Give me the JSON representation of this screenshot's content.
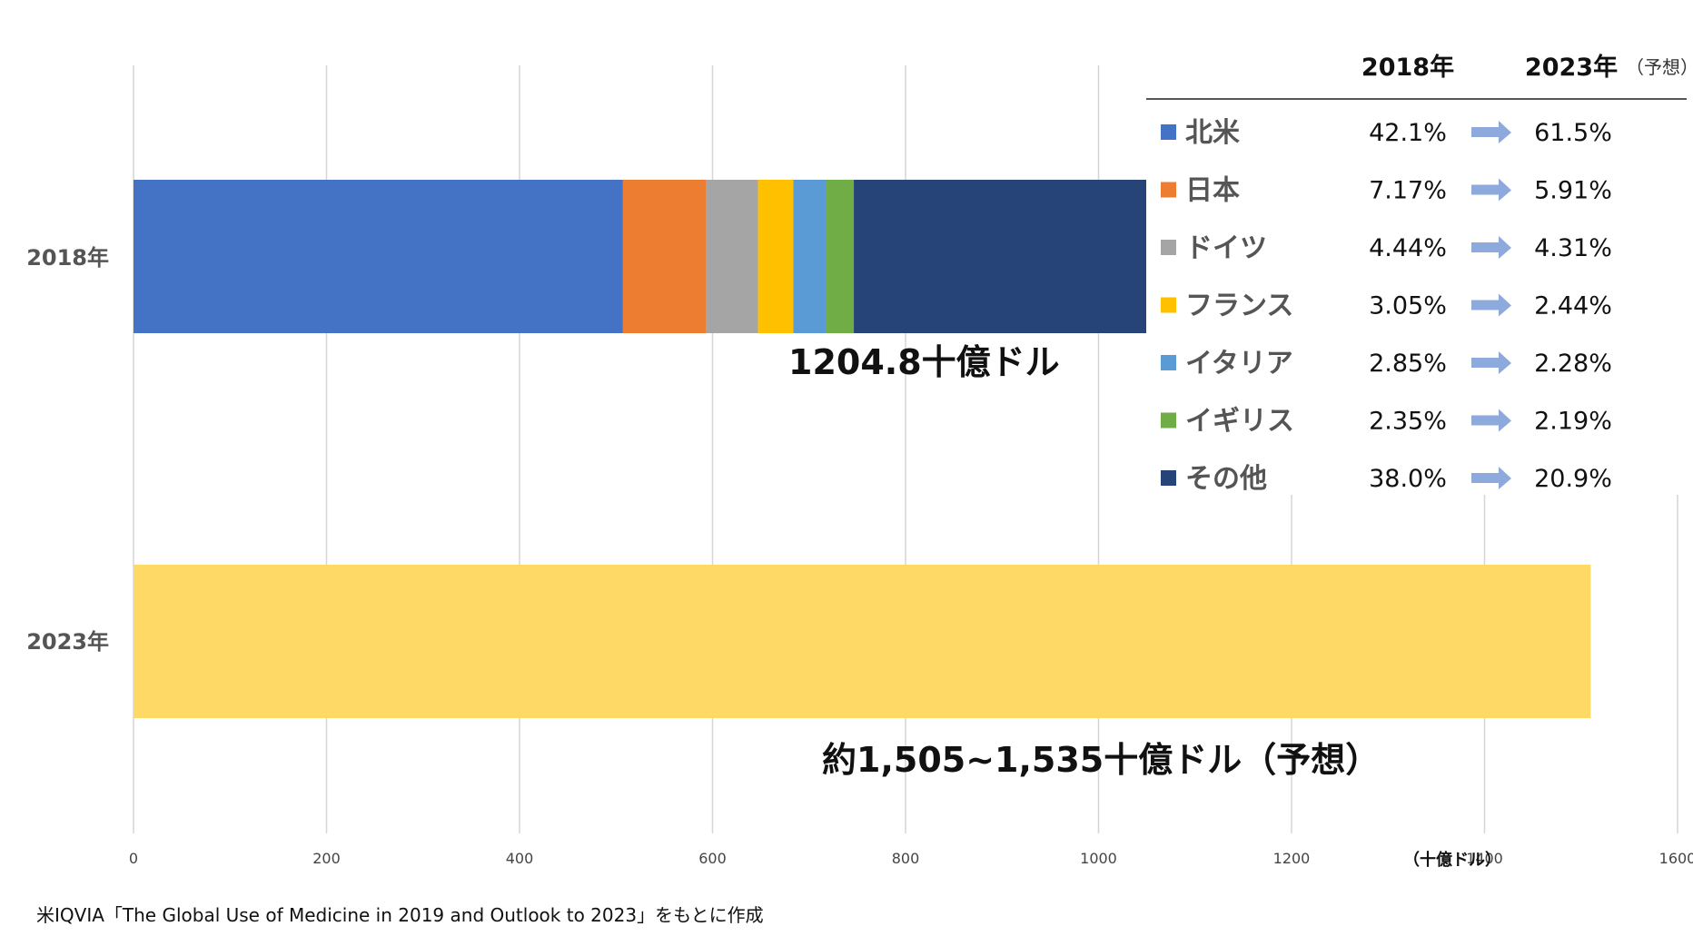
{
  "chart_data": {
    "type": "bar",
    "orientation": "horizontal",
    "stacked": true,
    "categories": [
      "2018年",
      "2023年"
    ],
    "unit": "（十億ドル）",
    "xlim": [
      0,
      1600
    ],
    "x_ticks": [
      0,
      200,
      400,
      600,
      800,
      1000,
      1200,
      1400,
      1600
    ],
    "grid": true,
    "segments_2018": [
      {
        "name": "北米",
        "value": 507.2,
        "color": "#4472C4"
      },
      {
        "name": "日本",
        "value": 86.4,
        "color": "#ED7D31"
      },
      {
        "name": "ドイツ",
        "value": 53.5,
        "color": "#A5A5A5"
      },
      {
        "name": "フランス",
        "value": 36.7,
        "color": "#FFC000"
      },
      {
        "name": "イタリア",
        "value": 34.3,
        "color": "#5B9BD5"
      },
      {
        "name": "イギリス",
        "value": 28.3,
        "color": "#70AD47"
      },
      {
        "name": "その他",
        "value": 458.4,
        "color": "#264478"
      }
    ],
    "bar_2023": {
      "value": 1510,
      "color": "#FFD966"
    },
    "total_labels": {
      "y2018": "1204.8十億ドル",
      "y2023": "約1,505~1,535十億ドル（予想）"
    },
    "legend": {
      "placement": "top-right",
      "col_2018": "2018年",
      "col_2023": "2023年",
      "col_2023_note": "（予想）",
      "rows": [
        {
          "name": "北米",
          "v2018": "42.1%",
          "v2023": "61.5%",
          "color": "#4472C4"
        },
        {
          "name": "日本",
          "v2018": "7.17%",
          "v2023": "5.91%",
          "color": "#ED7D31"
        },
        {
          "name": "ドイツ",
          "v2018": "4.44%",
          "v2023": "4.31%",
          "color": "#A5A5A5"
        },
        {
          "name": "フランス",
          "v2018": "3.05%",
          "v2023": "2.44%",
          "color": "#FFC000"
        },
        {
          "name": "イタリア",
          "v2018": "2.85%",
          "v2023": "2.28%",
          "color": "#5B9BD5"
        },
        {
          "name": "イギリス",
          "v2018": "2.35%",
          "v2023": "2.19%",
          "color": "#70AD47"
        },
        {
          "name": "その他",
          "v2018": "38.0%",
          "v2023": "20.9%",
          "color": "#264478"
        }
      ]
    },
    "arrow_color": "#8EA9DB"
  },
  "source_note": "米IQVIA「The Global Use of Medicine in 2019 and Outlook to 2023」をもとに作成"
}
